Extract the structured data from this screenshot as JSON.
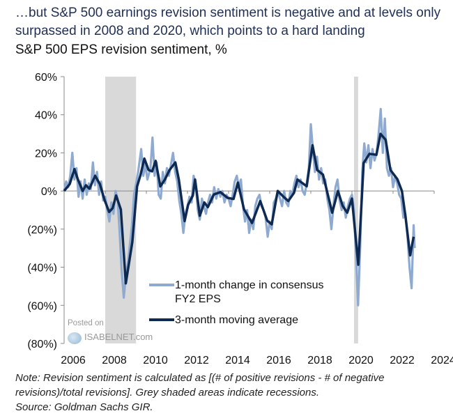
{
  "title": "…but S&P 500 earnings revision sentiment is negative and at levels only surpassed in 2008 and 2020, which points to a hard landing",
  "subtitle": "S&P 500 EPS revision sentiment, %",
  "note": "Note: Revision sentiment is calculated as [(# of positive revisions - # of negative revisions)/total revisions]. Grey shaded areas indicate recessions.",
  "source": "Source: Goldman Sachs GIR.",
  "watermark": {
    "line1": "Posted on",
    "line2": "ISABELNET.com"
  },
  "chart_data": {
    "type": "line",
    "xlim": [
      2006,
      2024
    ],
    "ylim": [
      -80,
      60
    ],
    "x_ticks": [
      2006,
      2008,
      2010,
      2012,
      2014,
      2016,
      2018,
      2020,
      2022,
      2024
    ],
    "x_tick_labels": [
      "2006",
      "2008",
      "2010",
      "2012",
      "2014",
      "2016",
      "2018",
      "2020",
      "2022",
      "2024"
    ],
    "y_ticks": [
      60,
      40,
      20,
      0,
      -20,
      -40,
      -60,
      -80
    ],
    "y_tick_labels": [
      "60%",
      "40%",
      "20%",
      "0%",
      "(20%)",
      "(40%)",
      "(60%)",
      "(80%)"
    ],
    "grid": false,
    "legend_placement": "bottom-center",
    "recessions": [
      [
        2008.0,
        2009.5
      ],
      [
        2020.1,
        2020.3
      ]
    ],
    "colors": {
      "one_month": "#8faad0",
      "moving_avg": "#0e2a52",
      "recession": "#d9d9d9"
    },
    "series": [
      {
        "name": "1-month change in consensus FY2 EPS",
        "points": [
          [
            2006.0,
            0
          ],
          [
            2006.1,
            5
          ],
          [
            2006.2,
            2
          ],
          [
            2006.3,
            8
          ],
          [
            2006.4,
            20
          ],
          [
            2006.5,
            6
          ],
          [
            2006.6,
            12
          ],
          [
            2006.7,
            -3
          ],
          [
            2006.8,
            5
          ],
          [
            2006.9,
            -4
          ],
          [
            2007.0,
            6
          ],
          [
            2007.1,
            -2
          ],
          [
            2007.2,
            4
          ],
          [
            2007.3,
            1
          ],
          [
            2007.4,
            15
          ],
          [
            2007.5,
            3
          ],
          [
            2007.6,
            10
          ],
          [
            2007.7,
            -2
          ],
          [
            2007.8,
            5
          ],
          [
            2007.9,
            -5
          ],
          [
            2008.0,
            -3
          ],
          [
            2008.1,
            -10
          ],
          [
            2008.2,
            -16
          ],
          [
            2008.3,
            -6
          ],
          [
            2008.4,
            -12
          ],
          [
            2008.5,
            0
          ],
          [
            2008.6,
            -4
          ],
          [
            2008.7,
            -22
          ],
          [
            2008.8,
            -42
          ],
          [
            2008.9,
            -56
          ],
          [
            2009.0,
            -45
          ],
          [
            2009.1,
            -38
          ],
          [
            2009.2,
            -28
          ],
          [
            2009.3,
            -18
          ],
          [
            2009.4,
            -2
          ],
          [
            2009.5,
            4
          ],
          [
            2009.6,
            10
          ],
          [
            2009.75,
            22
          ],
          [
            2009.85,
            8
          ],
          [
            2009.95,
            14
          ],
          [
            2010.05,
            6
          ],
          [
            2010.2,
            12
          ],
          [
            2010.3,
            28
          ],
          [
            2010.4,
            8
          ],
          [
            2010.5,
            15
          ],
          [
            2010.6,
            -2
          ],
          [
            2010.7,
            -4
          ],
          [
            2010.8,
            10
          ],
          [
            2010.9,
            4
          ],
          [
            2011.0,
            12
          ],
          [
            2011.1,
            8
          ],
          [
            2011.2,
            14
          ],
          [
            2011.3,
            20
          ],
          [
            2011.4,
            10
          ],
          [
            2011.5,
            5
          ],
          [
            2011.6,
            -5
          ],
          [
            2011.7,
            -12
          ],
          [
            2011.8,
            -22
          ],
          [
            2011.9,
            -12
          ],
          [
            2012.0,
            -8
          ],
          [
            2012.1,
            -3
          ],
          [
            2012.2,
            -6
          ],
          [
            2012.3,
            8
          ],
          [
            2012.4,
            4
          ],
          [
            2012.5,
            -10
          ],
          [
            2012.6,
            -15
          ],
          [
            2012.7,
            -4
          ],
          [
            2012.8,
            -8
          ],
          [
            2012.9,
            -12
          ],
          [
            2013.0,
            -6
          ],
          [
            2013.1,
            -2
          ],
          [
            2013.2,
            -6
          ],
          [
            2013.3,
            2
          ],
          [
            2013.4,
            -4
          ],
          [
            2013.5,
            1
          ],
          [
            2013.6,
            -3
          ],
          [
            2013.7,
            0
          ],
          [
            2013.8,
            -6
          ],
          [
            2013.9,
            -2
          ],
          [
            2014.0,
            -4
          ],
          [
            2014.1,
            -8
          ],
          [
            2014.2,
            -2
          ],
          [
            2014.3,
            5
          ],
          [
            2014.4,
            8
          ],
          [
            2014.5,
            2
          ],
          [
            2014.6,
            6
          ],
          [
            2014.7,
            -8
          ],
          [
            2014.8,
            -16
          ],
          [
            2014.9,
            -10
          ],
          [
            2015.0,
            -22
          ],
          [
            2015.1,
            -15
          ],
          [
            2015.2,
            -20
          ],
          [
            2015.3,
            -8
          ],
          [
            2015.4,
            -4
          ],
          [
            2015.5,
            -2
          ],
          [
            2015.6,
            -8
          ],
          [
            2015.7,
            -10
          ],
          [
            2015.8,
            -14
          ],
          [
            2015.9,
            -24
          ],
          [
            2016.0,
            -16
          ],
          [
            2016.1,
            -20
          ],
          [
            2016.2,
            -6
          ],
          [
            2016.3,
            -4
          ],
          [
            2016.4,
            0
          ],
          [
            2016.5,
            -4
          ],
          [
            2016.6,
            -8
          ],
          [
            2016.7,
            0
          ],
          [
            2016.8,
            -6
          ],
          [
            2016.9,
            -8
          ],
          [
            2017.0,
            0
          ],
          [
            2017.1,
            -2
          ],
          [
            2017.2,
            4
          ],
          [
            2017.3,
            8
          ],
          [
            2017.4,
            2
          ],
          [
            2017.5,
            6
          ],
          [
            2017.6,
            0
          ],
          [
            2017.7,
            -2
          ],
          [
            2017.8,
            4
          ],
          [
            2017.9,
            12
          ],
          [
            2018.0,
            35
          ],
          [
            2018.1,
            22
          ],
          [
            2018.2,
            10
          ],
          [
            2018.3,
            18
          ],
          [
            2018.4,
            6
          ],
          [
            2018.5,
            12
          ],
          [
            2018.6,
            4
          ],
          [
            2018.7,
            6
          ],
          [
            2018.8,
            -4
          ],
          [
            2018.9,
            -10
          ],
          [
            2019.0,
            -20
          ],
          [
            2019.1,
            -8
          ],
          [
            2019.2,
            2
          ],
          [
            2019.3,
            6
          ],
          [
            2019.4,
            -5
          ],
          [
            2019.5,
            -10
          ],
          [
            2019.6,
            -6
          ],
          [
            2019.7,
            -14
          ],
          [
            2019.8,
            -8
          ],
          [
            2019.9,
            -4
          ],
          [
            2020.0,
            -2
          ],
          [
            2020.1,
            -10
          ],
          [
            2020.2,
            -35
          ],
          [
            2020.3,
            -60
          ],
          [
            2020.4,
            -30
          ],
          [
            2020.5,
            10
          ],
          [
            2020.6,
            25
          ],
          [
            2020.7,
            15
          ],
          [
            2020.8,
            24
          ],
          [
            2020.9,
            12
          ],
          [
            2021.0,
            22
          ],
          [
            2021.1,
            16
          ],
          [
            2021.2,
            20
          ],
          [
            2021.3,
            30
          ],
          [
            2021.4,
            43
          ],
          [
            2021.5,
            20
          ],
          [
            2021.6,
            38
          ],
          [
            2021.7,
            12
          ],
          [
            2021.8,
            8
          ],
          [
            2021.9,
            12
          ],
          [
            2022.0,
            2
          ],
          [
            2022.1,
            8
          ],
          [
            2022.2,
            4
          ],
          [
            2022.3,
            -2
          ],
          [
            2022.4,
            -4
          ],
          [
            2022.5,
            -14
          ],
          [
            2022.6,
            -12
          ],
          [
            2022.7,
            -24
          ],
          [
            2022.8,
            -40
          ],
          [
            2022.9,
            -51
          ],
          [
            2023.0,
            -18
          ],
          [
            2023.05,
            -30
          ]
        ]
      },
      {
        "name": "3-month moving average",
        "points": [
          [
            2006.0,
            0
          ],
          [
            2006.27,
            3.6
          ],
          [
            2006.5,
            11.5
          ],
          [
            2006.67,
            6
          ],
          [
            2006.9,
            0
          ],
          [
            2007.06,
            3
          ],
          [
            2007.23,
            1.2
          ],
          [
            2007.51,
            8
          ],
          [
            2007.74,
            3.6
          ],
          [
            2007.97,
            -4.8
          ],
          [
            2008.19,
            -11
          ],
          [
            2008.36,
            -9
          ],
          [
            2008.53,
            -2.4
          ],
          [
            2008.76,
            -9.7
          ],
          [
            2009.0,
            -48.5
          ],
          [
            2009.32,
            -26.7
          ],
          [
            2009.55,
            2.4
          ],
          [
            2009.72,
            8.5
          ],
          [
            2009.9,
            17
          ],
          [
            2010.11,
            11
          ],
          [
            2010.28,
            10.3
          ],
          [
            2010.45,
            15.8
          ],
          [
            2010.68,
            2.4
          ],
          [
            2010.9,
            6
          ],
          [
            2011.13,
            11
          ],
          [
            2011.41,
            15
          ],
          [
            2011.58,
            6
          ],
          [
            2011.86,
            -15.8
          ],
          [
            2012.03,
            -7.3
          ],
          [
            2012.26,
            -2.4
          ],
          [
            2012.37,
            6
          ],
          [
            2012.6,
            -13
          ],
          [
            2012.82,
            -6
          ],
          [
            2012.99,
            -8.5
          ],
          [
            2013.28,
            -1.8
          ],
          [
            2013.6,
            -0.6
          ],
          [
            2013.95,
            -3.6
          ],
          [
            2014.24,
            -4.2
          ],
          [
            2014.45,
            4.4
          ],
          [
            2014.75,
            -9.6
          ],
          [
            2015.14,
            -16.8
          ],
          [
            2015.54,
            -5.3
          ],
          [
            2015.88,
            -15.6
          ],
          [
            2016.1,
            -17.5
          ],
          [
            2016.39,
            0
          ],
          [
            2016.67,
            -3
          ],
          [
            2016.9,
            -5.3
          ],
          [
            2017.18,
            -1
          ],
          [
            2017.35,
            6
          ],
          [
            2017.8,
            2.5
          ],
          [
            2018.08,
            24
          ],
          [
            2018.31,
            11
          ],
          [
            2018.59,
            8.6
          ],
          [
            2019.04,
            -11.4
          ],
          [
            2019.32,
            0
          ],
          [
            2019.55,
            -7.8
          ],
          [
            2019.77,
            -11.4
          ],
          [
            2020.0,
            -4
          ],
          [
            2020.31,
            -38.7
          ],
          [
            2020.57,
            14.7
          ],
          [
            2020.85,
            19.5
          ],
          [
            2021.19,
            19
          ],
          [
            2021.39,
            30
          ],
          [
            2021.64,
            26.8
          ],
          [
            2021.87,
            11
          ],
          [
            2022.21,
            6.2
          ],
          [
            2022.43,
            0
          ],
          [
            2022.6,
            -13
          ],
          [
            2022.83,
            -33.8
          ],
          [
            2023.0,
            -24
          ]
        ]
      }
    ]
  }
}
